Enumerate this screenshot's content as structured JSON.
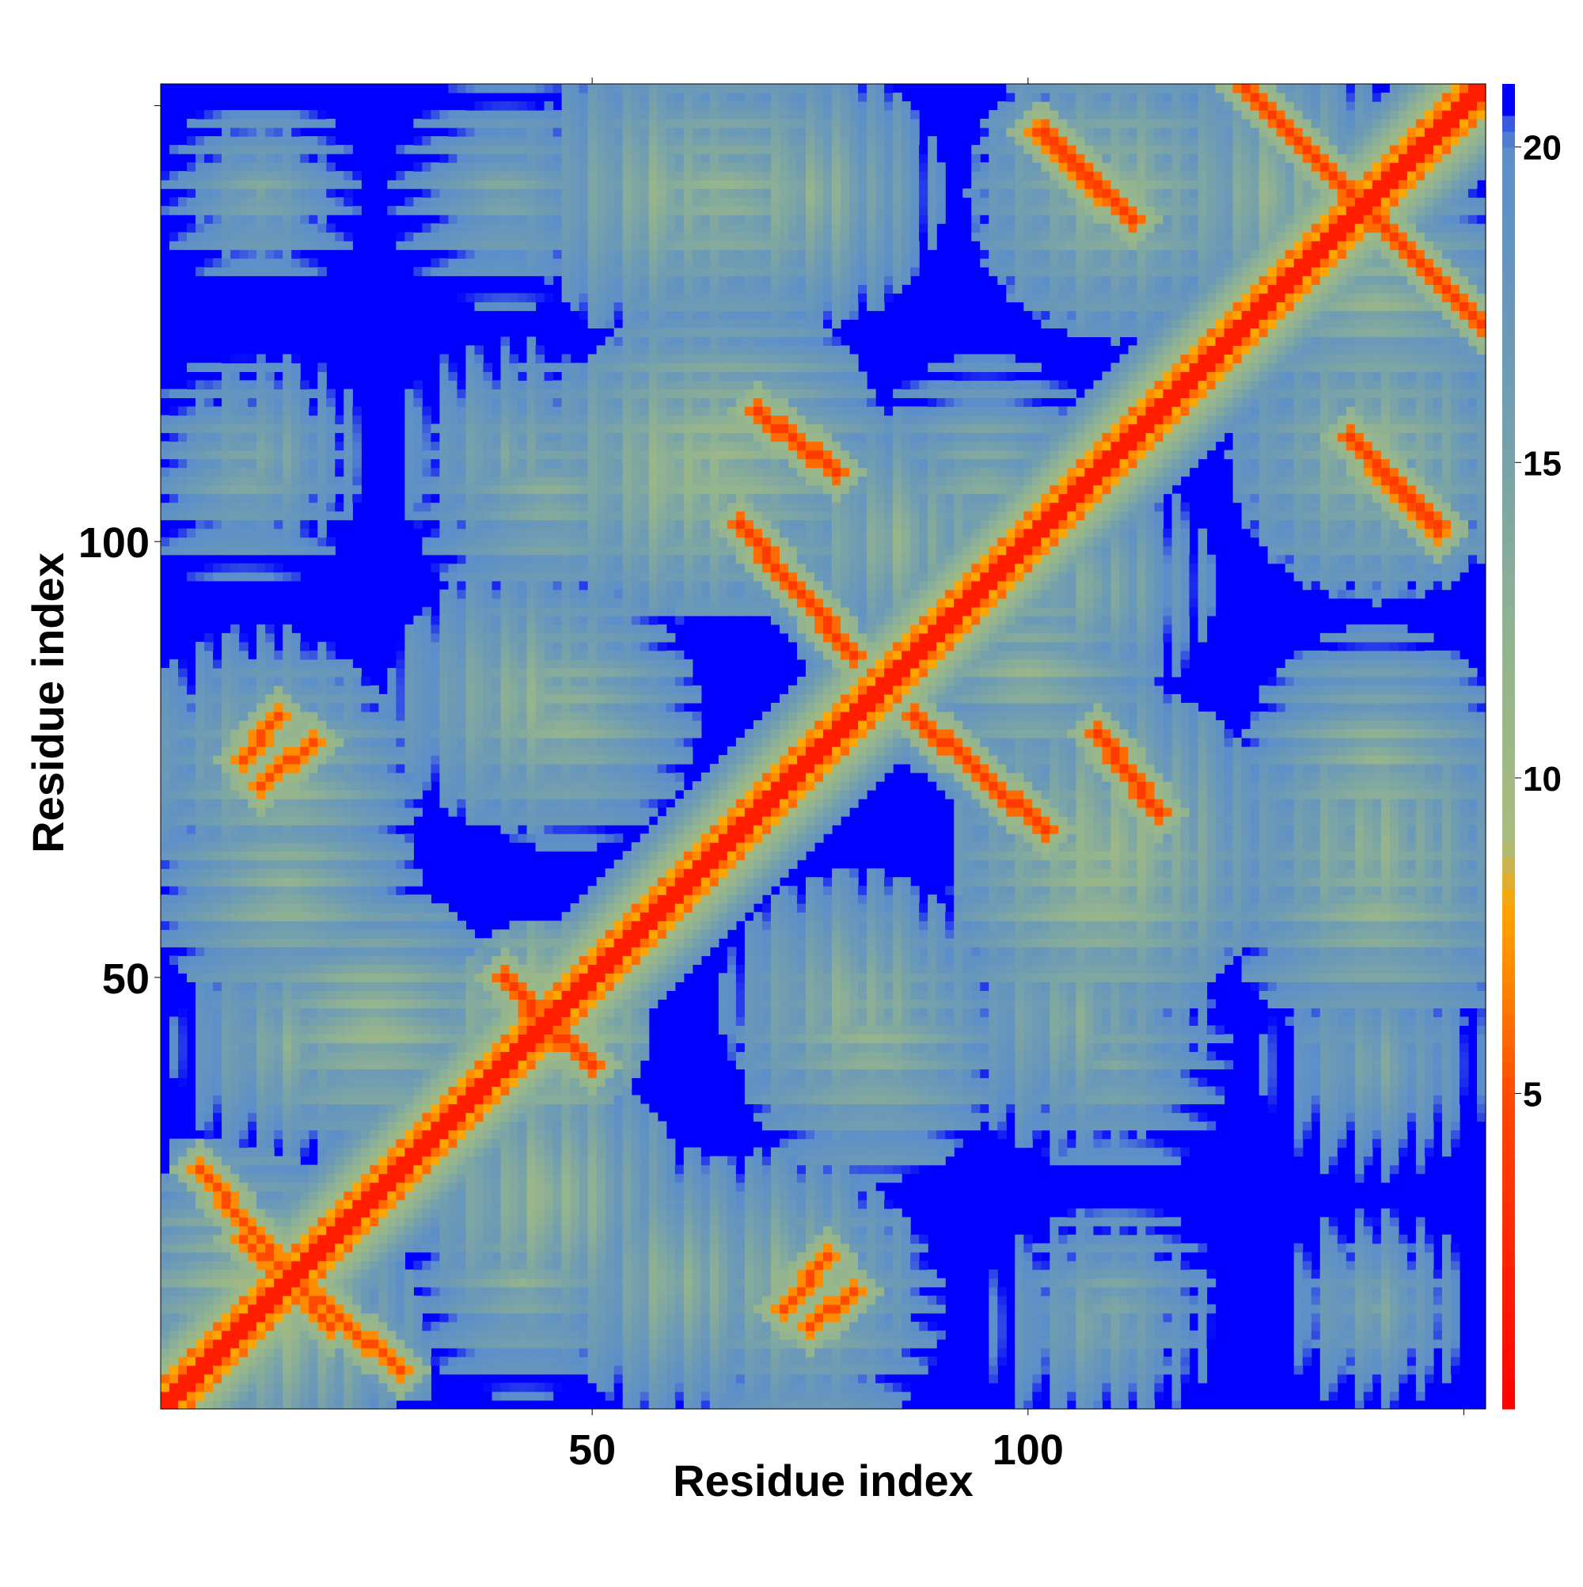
{
  "chart_data": {
    "type": "heatmap",
    "title": "",
    "xlabel": "Residue index",
    "ylabel": "Residue index",
    "n_residues": 152,
    "x_range": [
      1,
      152
    ],
    "y_range": [
      1,
      152
    ],
    "x_ticks": [
      50,
      100
    ],
    "y_ticks": [
      50,
      100
    ],
    "x_tick_labels": [
      "50",
      "100"
    ],
    "y_tick_labels": [
      "50",
      "100"
    ],
    "colorbar": {
      "range": [
        0,
        21
      ],
      "ticks": [
        5,
        10,
        15,
        20
      ],
      "tick_labels": [
        "5",
        "10",
        "15",
        "20"
      ],
      "stops": [
        {
          "value": 0,
          "color": "#ff0000"
        },
        {
          "value": 5,
          "color": "#ff4a00"
        },
        {
          "value": 7,
          "color": "#ff8c00"
        },
        {
          "value": 8,
          "color": "#ffa500"
        },
        {
          "value": 9,
          "color": "#a9bd7c"
        },
        {
          "value": 12,
          "color": "#93b48f"
        },
        {
          "value": 16,
          "color": "#709db1"
        },
        {
          "value": 20,
          "color": "#5b8ecb"
        },
        {
          "value": 21,
          "color": "#0000ff"
        }
      ]
    },
    "saturation_value": 21,
    "diagonal_band": {
      "residues": [
        1,
        152
      ],
      "value": 2
    },
    "contact_segments": [
      {
        "from": [
          5,
          28
        ],
        "to": [
          20,
          10
        ],
        "value": 7
      },
      {
        "from": [
          5,
          28
        ],
        "to": [
          20,
          10
        ],
        "value": 7,
        "mirror": true
      },
      {
        "from": [
          10,
          75
        ],
        "to": [
          14,
          80
        ],
        "value": 7
      },
      {
        "from": [
          10,
          75
        ],
        "to": [
          14,
          80
        ],
        "value": 7,
        "mirror": true
      },
      {
        "from": [
          40,
          50
        ],
        "to": [
          45,
          44
        ],
        "value": 6
      },
      {
        "from": [
          40,
          50
        ],
        "to": [
          45,
          44
        ],
        "value": 6,
        "mirror": true
      },
      {
        "from": [
          67,
          102
        ],
        "to": [
          80,
          87
        ],
        "value": 6
      },
      {
        "from": [
          67,
          102
        ],
        "to": [
          80,
          87
        ],
        "value": 6,
        "mirror": true
      },
      {
        "from": [
          72,
          12
        ],
        "to": [
          77,
          18
        ],
        "value": 7
      },
      {
        "from": [
          72,
          12
        ],
        "to": [
          77,
          18
        ],
        "value": 7,
        "mirror": true
      },
      {
        "from": [
          102,
          147
        ],
        "to": [
          112,
          137
        ],
        "value": 6
      },
      {
        "from": [
          102,
          147
        ],
        "to": [
          112,
          137
        ],
        "value": 6,
        "mirror": true
      },
      {
        "from": [
          108,
          78
        ],
        "to": [
          115,
          69
        ],
        "value": 6
      },
      {
        "from": [
          108,
          78
        ],
        "to": [
          115,
          69
        ],
        "value": 6,
        "mirror": true
      },
      {
        "from": [
          125,
          152
        ],
        "to": [
          150,
          127
        ],
        "value": 6
      },
      {
        "from": [
          125,
          152
        ],
        "to": [
          150,
          127
        ],
        "value": 6,
        "mirror": true
      },
      {
        "from": [
          140,
          108
        ],
        "to": [
          147,
          101
        ],
        "value": 7
      },
      {
        "from": [
          140,
          108
        ],
        "to": [
          147,
          101
        ],
        "value": 7,
        "mirror": true
      }
    ],
    "contact_blobs": [
      {
        "center": [
          12,
          140
        ],
        "radius": 6,
        "value": 16
      },
      {
        "center": [
          13,
          110
        ],
        "radius": 7,
        "value": 15
      },
      {
        "center": [
          12,
          75
        ],
        "radius": 9,
        "value": 14
      },
      {
        "center": [
          15,
          42
        ],
        "radius": 8,
        "value": 14
      },
      {
        "center": [
          15,
          10
        ],
        "radius": 9,
        "value": 12
      },
      {
        "center": [
          40,
          110
        ],
        "radius": 8,
        "value": 15
      },
      {
        "center": [
          42,
          82
        ],
        "radius": 9,
        "value": 13
      },
      {
        "center": [
          45,
          25
        ],
        "radius": 9,
        "value": 12
      },
      {
        "center": [
          45,
          45
        ],
        "radius": 7,
        "value": 10
      },
      {
        "center": [
          58,
          140
        ],
        "radius": 10,
        "value": 13
      },
      {
        "center": [
          60,
          108
        ],
        "radius": 10,
        "value": 12
      },
      {
        "center": [
          60,
          15
        ],
        "radius": 9,
        "value": 13
      },
      {
        "center": [
          75,
          140
        ],
        "radius": 9,
        "value": 13
      },
      {
        "center": [
          72,
          15
        ],
        "radius": 9,
        "value": 13
      },
      {
        "center": [
          80,
          47
        ],
        "radius": 9,
        "value": 13
      },
      {
        "center": [
          85,
          100
        ],
        "radius": 9,
        "value": 13
      },
      {
        "center": [
          110,
          140
        ],
        "radius": 10,
        "value": 13
      },
      {
        "center": [
          110,
          65
        ],
        "radius": 11,
        "value": 12
      },
      {
        "center": [
          105,
          45
        ],
        "radius": 9,
        "value": 14
      },
      {
        "center": [
          108,
          10
        ],
        "radius": 8,
        "value": 15
      },
      {
        "center": [
          108,
          95
        ],
        "radius": 8,
        "value": 14
      },
      {
        "center": [
          140,
          110
        ],
        "radius": 10,
        "value": 13
      },
      {
        "center": [
          140,
          65
        ],
        "radius": 10,
        "value": 13
      },
      {
        "center": [
          140,
          40
        ],
        "radius": 8,
        "value": 15
      },
      {
        "center": [
          140,
          12
        ],
        "radius": 7,
        "value": 15
      },
      {
        "center": [
          128,
          140
        ],
        "radius": 10,
        "value": 13
      }
    ]
  }
}
